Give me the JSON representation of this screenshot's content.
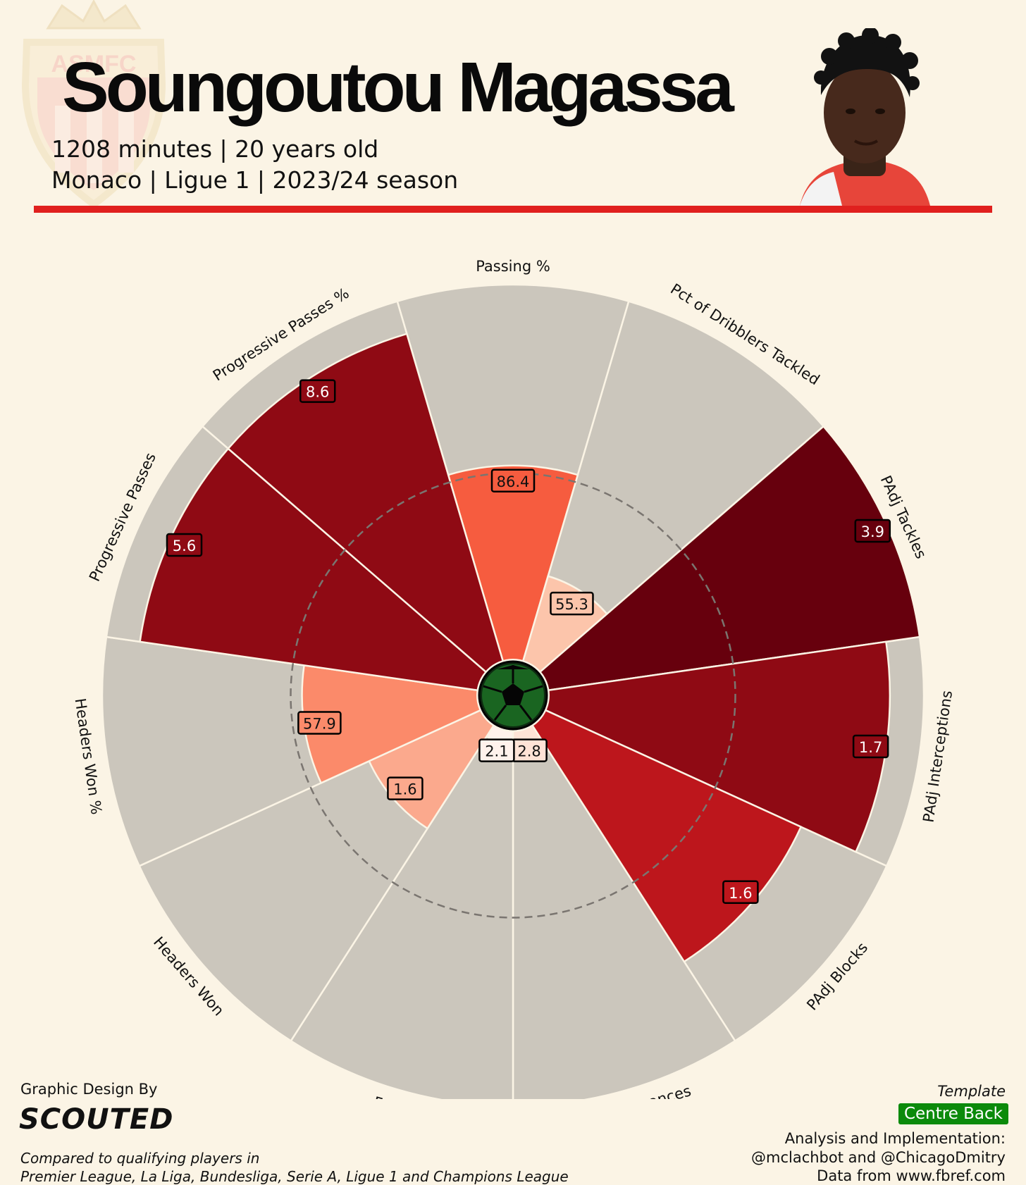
{
  "header": {
    "player_name": "Soungoutou Magassa",
    "subtitle_line1": "1208 minutes | 20 years old",
    "subtitle_line2": "Monaco | Ligue 1 | 2023/24 season",
    "club_logo_text": "ASMFC",
    "accent_color": "#e0201e"
  },
  "chart_data": {
    "type": "radar",
    "value_scale": "percentile",
    "range": [
      0,
      100
    ],
    "reference_line_percentile": 50,
    "categories": [
      "Passing %",
      "Pct of Dribblers Tackled",
      "PAdj Tackles",
      "PAdj Interceptions",
      "PAdj Blocks",
      "PAdj Clearances",
      "Fouls",
      "Headers Won",
      "Headers Won %",
      "Progressive Passes",
      "Progressive Passes %"
    ],
    "values": [
      "86.4",
      "55.3",
      "3.9",
      "1.7",
      "1.6",
      "2.8",
      "2.1",
      "1.6",
      "57.9",
      "5.6",
      "8.6"
    ],
    "percentiles": [
      52,
      24,
      100,
      91,
      75,
      6,
      4,
      33,
      47,
      91,
      91
    ],
    "colors": [
      "#f65c3f",
      "#fcc5ab",
      "#67000d",
      "#8f0a14",
      "#bd161c",
      "#fee3d6",
      "#fff2ec",
      "#fba98d",
      "#fb8a6a",
      "#8f0a14",
      "#8f0a14"
    ],
    "background_color": "#cbc6bc"
  },
  "footer": {
    "credit_label": "Graphic Design By",
    "brand": "SCOUTED",
    "comparison_line1": "Compared to qualifying players in",
    "comparison_line2": "Premier League, La Liga, Bundesliga, Serie A, Ligue 1 and Champions League",
    "template_label": "Template",
    "template_value": "Centre Back",
    "analysis_line1": "Analysis and Implementation:",
    "analysis_line2": "@mclachbot and @ChicagoDmitry",
    "analysis_line3": "Data from www.fbref.com"
  }
}
